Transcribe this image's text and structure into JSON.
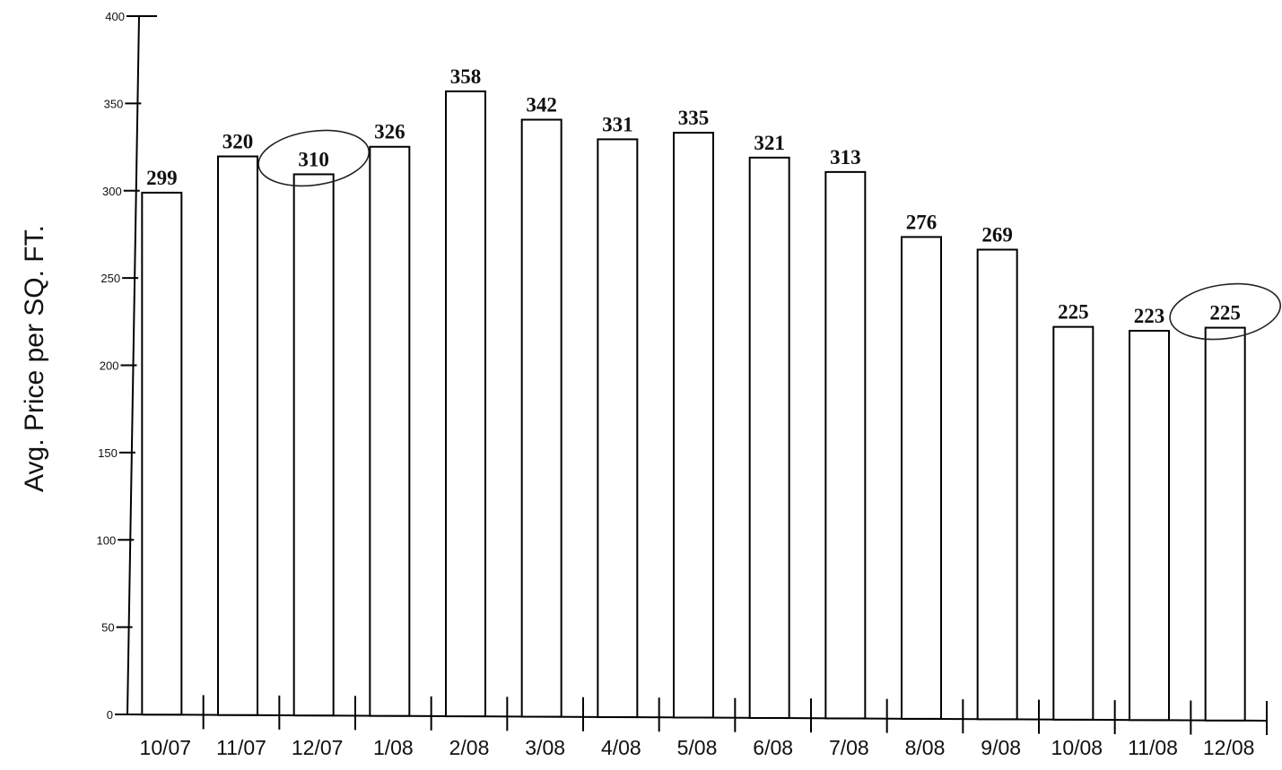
{
  "chart_data": {
    "type": "bar",
    "title": "",
    "xlabel": "",
    "ylabel": "Avg. Price per SQ. FT.",
    "ylim": [
      0,
      400
    ],
    "yticks": [
      0,
      50,
      100,
      150,
      200,
      250,
      300,
      350,
      400
    ],
    "categories": [
      "10/07",
      "11/07",
      "12/07",
      "1/08",
      "2/08",
      "3/08",
      "4/08",
      "5/08",
      "6/08",
      "7/08",
      "8/08",
      "9/08",
      "10/08",
      "11/08",
      "12/08"
    ],
    "values": [
      299,
      320,
      310,
      326,
      358,
      342,
      331,
      335,
      321,
      313,
      276,
      269,
      225,
      223,
      225
    ],
    "circled": [
      "12/07",
      "12/08"
    ],
    "grid": false,
    "legend": "none",
    "colors": {
      "bar_fill": "#ffffff",
      "bar_stroke": "#000000",
      "axis": "#000000"
    }
  }
}
